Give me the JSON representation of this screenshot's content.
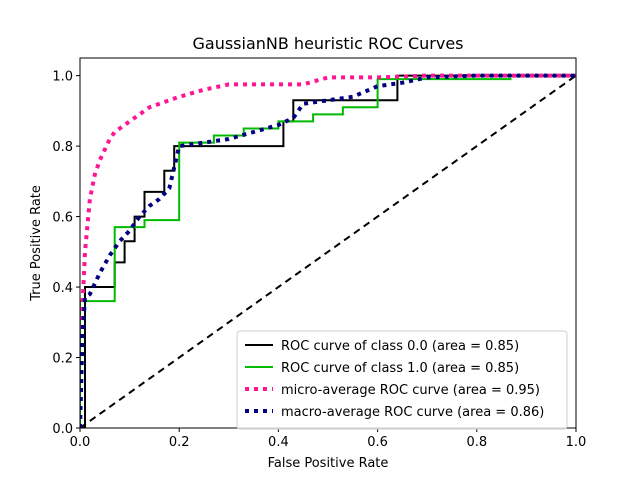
{
  "chart_data": {
    "type": "line",
    "title": "GaussianNB heuristic ROC Curves",
    "xlabel": "False Positive Rate",
    "ylabel": "True Positive Rate",
    "xlim": [
      0,
      1
    ],
    "ylim": [
      0,
      1.05
    ],
    "xticks": [
      "0.0",
      "0.2",
      "0.4",
      "0.6",
      "0.8",
      "1.0"
    ],
    "yticks": [
      "0.0",
      "0.2",
      "0.4",
      "0.6",
      "0.8",
      "1.0"
    ],
    "grid": false,
    "legend_position": "lower-right",
    "series": [
      {
        "name": "ROC curve of class 0.0 (area = 0.85)",
        "color": "#000000",
        "style": "solid",
        "x": [
          0,
          0.01,
          0.01,
          0.01,
          0.01,
          0.04,
          0.07,
          0.07,
          0.09,
          0.09,
          0.11,
          0.11,
          0.13,
          0.13,
          0.17,
          0.17,
          0.19,
          0.19,
          0.41,
          0.41,
          0.43,
          0.43,
          0.6,
          0.6,
          0.64,
          0.64,
          1.0
        ],
        "y": [
          0,
          0,
          0.13,
          0.4,
          0.4,
          0.4,
          0.4,
          0.47,
          0.47,
          0.53,
          0.53,
          0.6,
          0.6,
          0.67,
          0.67,
          0.73,
          0.73,
          0.8,
          0.8,
          0.87,
          0.87,
          0.93,
          0.93,
          0.93,
          0.93,
          1.0,
          1.0
        ]
      },
      {
        "name": "ROC curve of class 1.0 (area = 0.85)",
        "color": "#00bb00",
        "style": "solid",
        "x": [
          0,
          0,
          0.07,
          0.07,
          0.13,
          0.13,
          0.2,
          0.2,
          0.27,
          0.27,
          0.33,
          0.33,
          0.4,
          0.4,
          0.47,
          0.47,
          0.53,
          0.53,
          0.6,
          0.6,
          0.87
        ],
        "y": [
          0,
          0.36,
          0.36,
          0.57,
          0.57,
          0.59,
          0.59,
          0.81,
          0.81,
          0.83,
          0.83,
          0.85,
          0.85,
          0.87,
          0.87,
          0.89,
          0.89,
          0.91,
          0.91,
          0.99,
          0.99
        ]
      },
      {
        "name": "micro-average ROC curve (area = 0.95)",
        "color": "#ff1493",
        "style": "dotted",
        "x": [
          0,
          0.005,
          0.01,
          0.02,
          0.03,
          0.04,
          0.05,
          0.06,
          0.07,
          0.08,
          0.09,
          0.1,
          0.12,
          0.14,
          0.16,
          0.18,
          0.2,
          0.25,
          0.3,
          0.35,
          0.4,
          0.45,
          0.5,
          0.55,
          0.6,
          0.7,
          0.8,
          0.9,
          1.0
        ],
        "y": [
          0,
          0.35,
          0.5,
          0.65,
          0.72,
          0.76,
          0.79,
          0.82,
          0.84,
          0.85,
          0.86,
          0.87,
          0.89,
          0.91,
          0.92,
          0.93,
          0.94,
          0.96,
          0.975,
          0.975,
          0.975,
          0.975,
          0.995,
          0.995,
          0.995,
          1.0,
          1.0,
          1.0,
          1.0
        ]
      },
      {
        "name": "macro-average ROC curve (area = 0.86)",
        "color": "#000080",
        "style": "dotted",
        "x": [
          0,
          0.005,
          0.01,
          0.02,
          0.04,
          0.06,
          0.08,
          0.1,
          0.12,
          0.14,
          0.16,
          0.18,
          0.2,
          0.25,
          0.3,
          0.35,
          0.4,
          0.43,
          0.45,
          0.5,
          0.55,
          0.6,
          0.65,
          0.7,
          0.8,
          0.9,
          1.0
        ],
        "y": [
          0,
          0.26,
          0.37,
          0.38,
          0.44,
          0.49,
          0.53,
          0.56,
          0.6,
          0.63,
          0.65,
          0.68,
          0.8,
          0.81,
          0.82,
          0.84,
          0.86,
          0.88,
          0.92,
          0.93,
          0.94,
          0.97,
          0.98,
          0.995,
          1.0,
          1.0,
          1.0
        ]
      },
      {
        "name": "",
        "color": "#000000",
        "style": "dashed",
        "x": [
          0,
          1
        ],
        "y": [
          0,
          1
        ]
      }
    ]
  }
}
